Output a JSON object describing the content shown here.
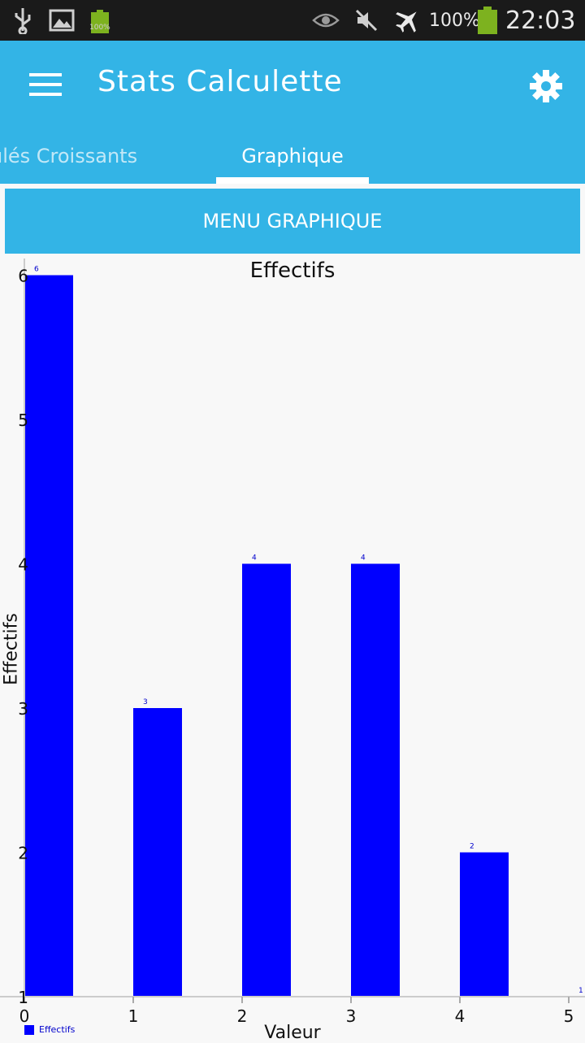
{
  "status_bar": {
    "battery_small_text": "100%",
    "battery_percent": "100%",
    "time": "22:03"
  },
  "app_bar": {
    "title": "Stats Calculette",
    "tabs": [
      {
        "label": "ulés Croissants",
        "active": false
      },
      {
        "label": "Graphique",
        "active": true
      }
    ]
  },
  "menu_button": {
    "label": "MENU GRAPHIQUE"
  },
  "colors": {
    "accent": "#33b4e6",
    "bar": "#0000ff"
  },
  "chart_data": {
    "type": "bar",
    "title": "Effectifs",
    "xlabel": "Valeur",
    "ylabel": "Effectifs",
    "categories": [
      "0",
      "1",
      "2",
      "3",
      "4",
      "5"
    ],
    "series": [
      {
        "name": "Effectifs",
        "x": [
          0,
          1,
          2,
          3,
          4,
          5
        ],
        "values": [
          6,
          3,
          4,
          4,
          2,
          1
        ]
      }
    ],
    "xlim": [
      0,
      5
    ],
    "ylim": [
      1,
      6
    ],
    "y_ticks": [
      "1",
      "2",
      "3",
      "4",
      "5",
      "6"
    ],
    "legend": "bottom-left",
    "grid": false
  }
}
